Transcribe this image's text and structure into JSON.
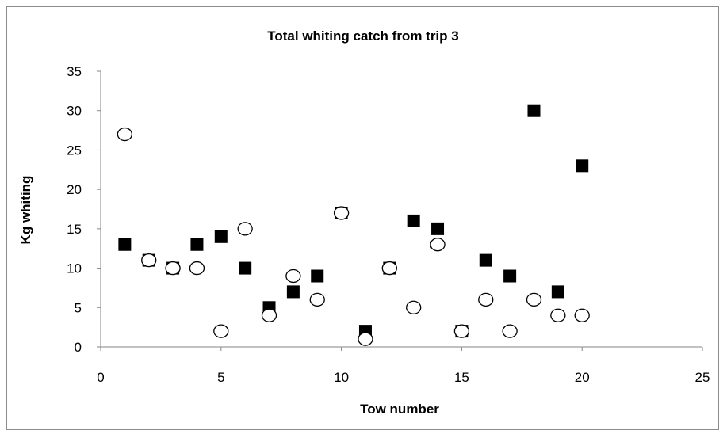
{
  "chart_data": {
    "type": "scatter",
    "title": "Total whiting catch from trip 3",
    "xlabel": "Tow number",
    "ylabel": "Kg whiting",
    "xlim": [
      0,
      25
    ],
    "ylim": [
      0,
      35
    ],
    "x_ticks": [
      "0",
      "5",
      "10",
      "15",
      "20",
      "25"
    ],
    "y_ticks": [
      "0",
      "5",
      "10",
      "15",
      "20",
      "25",
      "30",
      "35"
    ],
    "grid": false,
    "legend": "none",
    "series": [
      {
        "marker": "filled-square",
        "color": "#000000",
        "points": [
          [
            1,
            13
          ],
          [
            2,
            11
          ],
          [
            3,
            10
          ],
          [
            4,
            13
          ],
          [
            5,
            14
          ],
          [
            6,
            10
          ],
          [
            7,
            5
          ],
          [
            8,
            7
          ],
          [
            9,
            9
          ],
          [
            10,
            17
          ],
          [
            11,
            2
          ],
          [
            12,
            10
          ],
          [
            13,
            16
          ],
          [
            14,
            15
          ],
          [
            15,
            2
          ],
          [
            16,
            11
          ],
          [
            17,
            9
          ],
          [
            18,
            30
          ],
          [
            19,
            7
          ],
          [
            20,
            23
          ]
        ]
      },
      {
        "marker": "open-circle",
        "color": "#000000",
        "points": [
          [
            1,
            27
          ],
          [
            2,
            11
          ],
          [
            3,
            10
          ],
          [
            4,
            10
          ],
          [
            5,
            2
          ],
          [
            6,
            15
          ],
          [
            7,
            4
          ],
          [
            8,
            9
          ],
          [
            9,
            6
          ],
          [
            10,
            17
          ],
          [
            11,
            1
          ],
          [
            12,
            10
          ],
          [
            13,
            5
          ],
          [
            14,
            13
          ],
          [
            15,
            2
          ],
          [
            16,
            6
          ],
          [
            17,
            2
          ],
          [
            18,
            6
          ],
          [
            19,
            4
          ],
          [
            20,
            4
          ]
        ]
      }
    ]
  }
}
